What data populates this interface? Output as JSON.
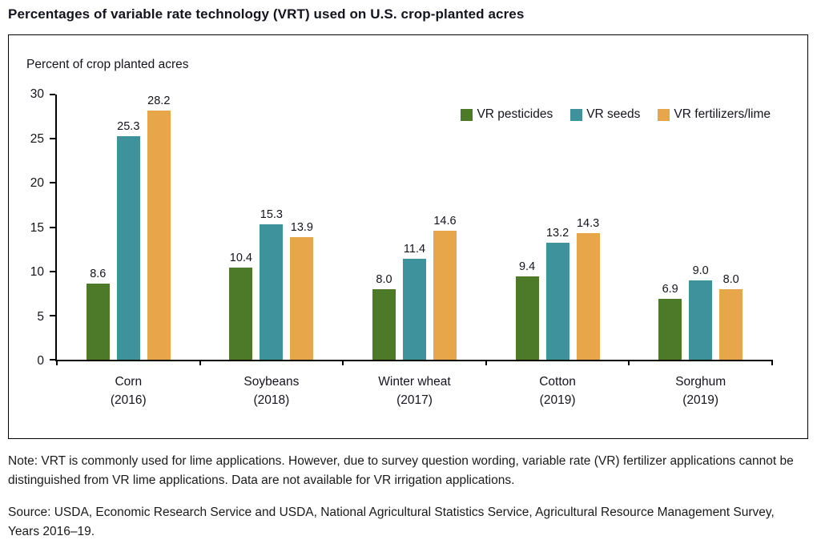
{
  "note": "Note: VRT is commonly used for lime applications. However, due to survey question wording, variable rate (VR) fertilizer applications cannot be distinguished from VR lime applications. Data are not available for VR irrigation applications.",
  "source": "Source: USDA, Economic Research Service and USDA, National Agricultural Statistics Service, Agricultural Resource Management Survey, Years 2016–19.",
  "chart_data": {
    "type": "bar",
    "title": "Percentages of variable rate technology (VRT) used on U.S. crop-planted acres",
    "ylabel": "Percent of crop planted acres",
    "xlabel": "",
    "ylim": [
      0,
      30
    ],
    "yticks": [
      0,
      5,
      10,
      15,
      20,
      25,
      30
    ],
    "grid": false,
    "legend_position": "top-right",
    "value_labels": true,
    "categories": [
      "Corn\n(2016)",
      "Soybeans\n(2018)",
      "Winter wheat\n(2017)",
      "Cotton\n(2019)",
      "Sorghum\n(2019)"
    ],
    "series": [
      {
        "name": "VR pesticides",
        "color": "#4c7a28",
        "values": [
          8.6,
          10.4,
          8.0,
          9.4,
          6.9
        ]
      },
      {
        "name": "VR seeds",
        "color": "#3e929c",
        "values": [
          25.3,
          15.3,
          11.4,
          13.2,
          9.0
        ]
      },
      {
        "name": "VR fertilizers/lime",
        "color": "#e8a64b",
        "values": [
          28.2,
          13.9,
          14.6,
          14.3,
          8.0
        ]
      }
    ]
  }
}
